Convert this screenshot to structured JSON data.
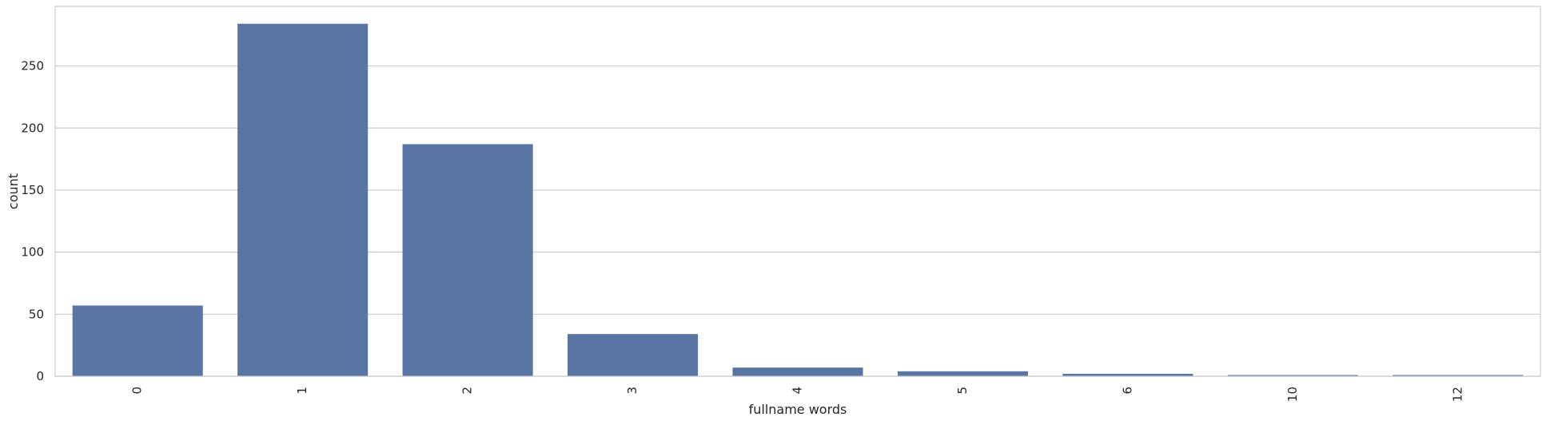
{
  "chart_data": {
    "type": "bar",
    "title": "",
    "xlabel": "fullname words",
    "ylabel": "count",
    "categories": [
      "0",
      "1",
      "2",
      "3",
      "4",
      "5",
      "6",
      "10",
      "12"
    ],
    "values": [
      57,
      284,
      187,
      34,
      7,
      4,
      2,
      1,
      1
    ],
    "ylim": [
      0,
      298
    ],
    "yticks": [
      0,
      50,
      100,
      150,
      200,
      250
    ],
    "grid": true,
    "x_tick_rotation": -90,
    "bar_color": "#5875a4",
    "grid_color": "#cccccc",
    "spine_color": "#cccccc"
  }
}
